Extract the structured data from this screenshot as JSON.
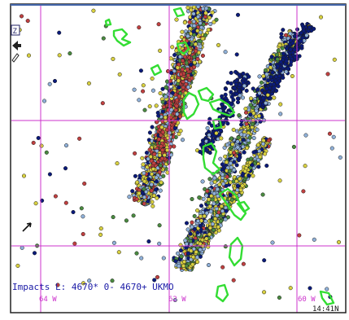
{
  "map": {
    "title_line": "Impacts L:   4670*    0- 4670+  UKMO",
    "time_label": "14:41N",
    "longitude_labels": [
      "64 W",
      "62 W",
      "60 W"
    ],
    "colors": {
      "background": "#ffffff",
      "grid": "#cc33cc",
      "coastline": "#33dd33",
      "frame": "#222222",
      "stroke_dark_blue": "#0a1a7a",
      "stroke_light_blue": "#8fb0d8",
      "stroke_yellow": "#d8d040",
      "stroke_red": "#c04040",
      "stroke_green": "#4a8a40"
    },
    "toolbar_icons": [
      "zoom-box-icon",
      "pan-arrow-icon",
      "cursor-arrow-icon"
    ]
  }
}
